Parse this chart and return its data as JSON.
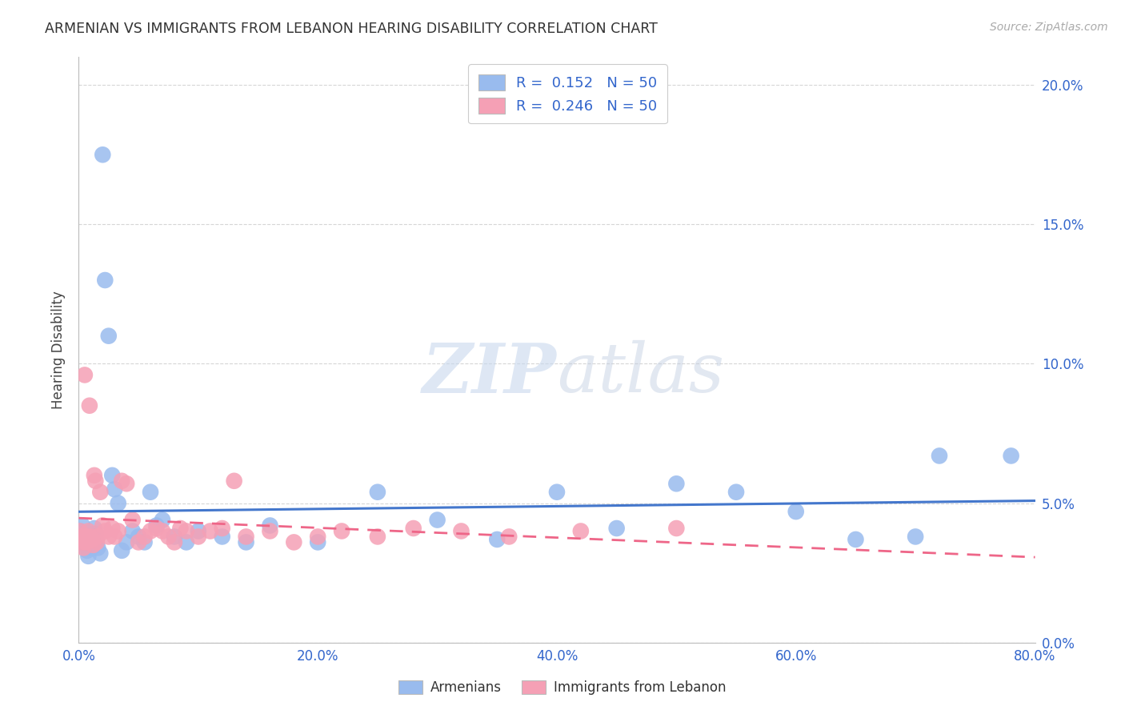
{
  "title": "ARMENIAN VS IMMIGRANTS FROM LEBANON HEARING DISABILITY CORRELATION CHART",
  "source": "Source: ZipAtlas.com",
  "ylabel_label": "Hearing Disability",
  "xlim": [
    0,
    0.8
  ],
  "ylim": [
    0.0,
    0.21
  ],
  "armenian_color": "#99bbee",
  "lebanon_color": "#f5a0b5",
  "armenian_line_color": "#4477cc",
  "lebanon_line_color": "#ee6688",
  "legend_text_color": "#3366cc",
  "axis_tick_color": "#3366cc",
  "R_armenian": "0.152",
  "N_armenian": "50",
  "R_lebanon": "0.246",
  "N_lebanon": "50",
  "armenian_x": [
    0.001,
    0.002,
    0.003,
    0.004,
    0.005,
    0.006,
    0.007,
    0.008,
    0.009,
    0.01,
    0.011,
    0.012,
    0.013,
    0.014,
    0.015,
    0.016,
    0.018,
    0.02,
    0.022,
    0.025,
    0.028,
    0.03,
    0.033,
    0.036,
    0.04,
    0.045,
    0.05,
    0.055,
    0.06,
    0.065,
    0.07,
    0.08,
    0.09,
    0.1,
    0.12,
    0.14,
    0.16,
    0.2,
    0.25,
    0.3,
    0.35,
    0.4,
    0.45,
    0.5,
    0.55,
    0.6,
    0.65,
    0.7,
    0.72,
    0.78
  ],
  "armenian_y": [
    0.04,
    0.038,
    0.042,
    0.037,
    0.036,
    0.035,
    0.033,
    0.031,
    0.039,
    0.036,
    0.034,
    0.037,
    0.041,
    0.039,
    0.036,
    0.034,
    0.032,
    0.175,
    0.13,
    0.11,
    0.06,
    0.055,
    0.05,
    0.033,
    0.036,
    0.04,
    0.038,
    0.036,
    0.054,
    0.042,
    0.044,
    0.038,
    0.036,
    0.04,
    0.038,
    0.036,
    0.042,
    0.036,
    0.054,
    0.044,
    0.037,
    0.054,
    0.041,
    0.057,
    0.054,
    0.047,
    0.037,
    0.038,
    0.067,
    0.067
  ],
  "lebanon_x": [
    0.001,
    0.002,
    0.003,
    0.004,
    0.005,
    0.006,
    0.007,
    0.008,
    0.009,
    0.01,
    0.011,
    0.012,
    0.013,
    0.014,
    0.015,
    0.016,
    0.018,
    0.02,
    0.022,
    0.025,
    0.028,
    0.03,
    0.033,
    0.036,
    0.04,
    0.045,
    0.05,
    0.055,
    0.06,
    0.065,
    0.07,
    0.075,
    0.08,
    0.085,
    0.09,
    0.1,
    0.11,
    0.12,
    0.13,
    0.14,
    0.16,
    0.18,
    0.2,
    0.22,
    0.25,
    0.28,
    0.32,
    0.36,
    0.42,
    0.5
  ],
  "lebanon_y": [
    0.04,
    0.038,
    0.036,
    0.034,
    0.096,
    0.036,
    0.038,
    0.04,
    0.085,
    0.038,
    0.037,
    0.035,
    0.06,
    0.058,
    0.036,
    0.038,
    0.054,
    0.042,
    0.04,
    0.038,
    0.041,
    0.038,
    0.04,
    0.058,
    0.057,
    0.044,
    0.036,
    0.038,
    0.04,
    0.041,
    0.04,
    0.038,
    0.036,
    0.041,
    0.04,
    0.038,
    0.04,
    0.041,
    0.058,
    0.038,
    0.04,
    0.036,
    0.038,
    0.04,
    0.038,
    0.041,
    0.04,
    0.038,
    0.04,
    0.041
  ],
  "watermark_zip": "ZIP",
  "watermark_atlas": "atlas",
  "background_color": "#ffffff",
  "grid_color": "#cccccc"
}
